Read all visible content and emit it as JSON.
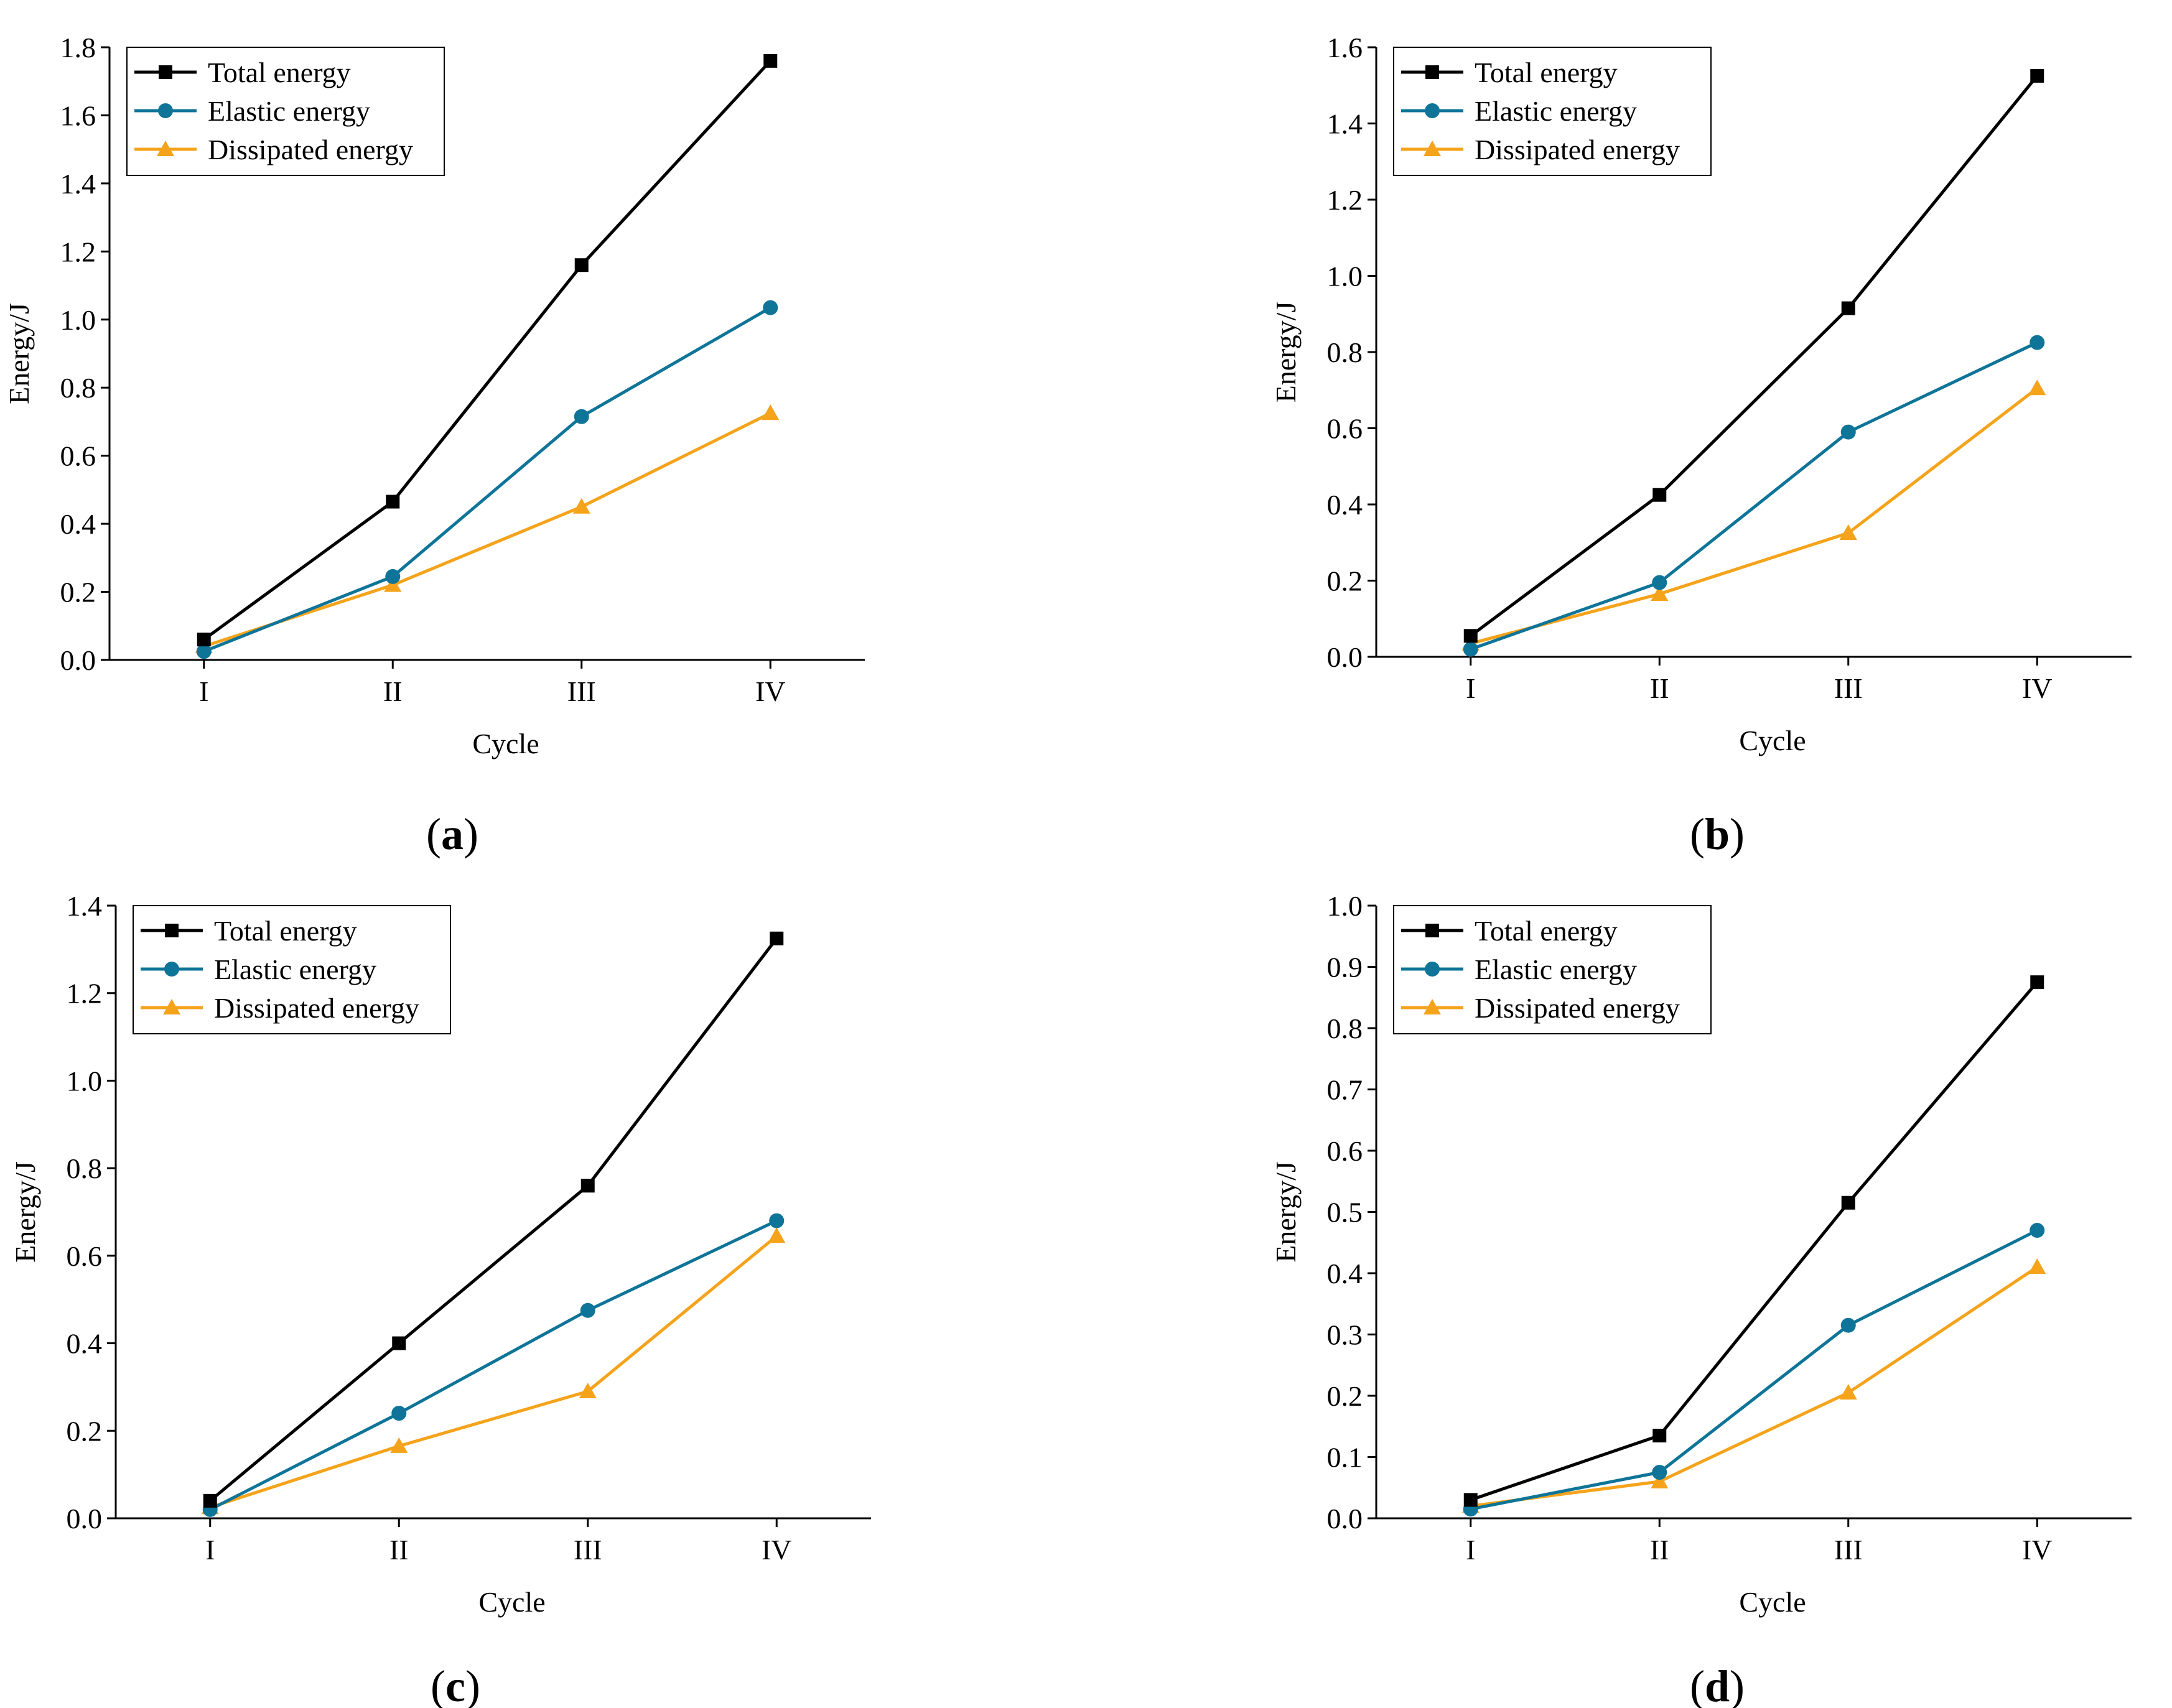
{
  "figure": {
    "series_styles": [
      {
        "name": "Total energy",
        "color": "#000000",
        "marker": "square"
      },
      {
        "name": "Elastic energy",
        "color": "#0e7498",
        "marker": "circle"
      },
      {
        "name": "Dissipated energy",
        "color": "#f5a31a",
        "marker": "triangle"
      }
    ]
  },
  "chart_data": [
    {
      "type": "line",
      "panel_label": "a",
      "title": "",
      "xlabel": "Cycle",
      "ylabel": "Energy/J",
      "categories": [
        "I",
        "II",
        "III",
        "IV"
      ],
      "ylim": [
        0,
        1.8
      ],
      "yticks": [
        "0.0",
        "0.2",
        "0.4",
        "0.6",
        "0.8",
        "1.0",
        "1.2",
        "1.4",
        "1.6",
        "1.8"
      ],
      "legend_position": "top-left",
      "series": [
        {
          "name": "Total energy",
          "values": [
            0.06,
            0.465,
            1.16,
            1.76
          ]
        },
        {
          "name": "Elastic energy",
          "values": [
            0.025,
            0.245,
            0.715,
            1.035
          ]
        },
        {
          "name": "Dissipated energy",
          "values": [
            0.04,
            0.22,
            0.45,
            0.725
          ]
        }
      ]
    },
    {
      "type": "line",
      "panel_label": "b",
      "title": "",
      "xlabel": "Cycle",
      "ylabel": "Energy/J",
      "categories": [
        "I",
        "II",
        "III",
        "IV"
      ],
      "ylim": [
        0,
        1.6
      ],
      "yticks": [
        "0.0",
        "0.2",
        "0.4",
        "0.6",
        "0.8",
        "1.0",
        "1.2",
        "1.4",
        "1.6"
      ],
      "legend_position": "top-left",
      "series": [
        {
          "name": "Total energy",
          "values": [
            0.055,
            0.425,
            0.915,
            1.525
          ]
        },
        {
          "name": "Elastic energy",
          "values": [
            0.02,
            0.195,
            0.59,
            0.825
          ]
        },
        {
          "name": "Dissipated energy",
          "values": [
            0.035,
            0.165,
            0.325,
            0.705
          ]
        }
      ]
    },
    {
      "type": "line",
      "panel_label": "c",
      "title": "",
      "xlabel": "Cycle",
      "ylabel": "Energy/J",
      "categories": [
        "I",
        "II",
        "III",
        "IV"
      ],
      "ylim": [
        0,
        1.4
      ],
      "yticks": [
        "0.0",
        "0.2",
        "0.4",
        "0.6",
        "0.8",
        "1.0",
        "1.2",
        "1.4"
      ],
      "legend_position": "top-left",
      "series": [
        {
          "name": "Total energy",
          "values": [
            0.04,
            0.4,
            0.76,
            1.325
          ]
        },
        {
          "name": "Elastic energy",
          "values": [
            0.02,
            0.24,
            0.475,
            0.68
          ]
        },
        {
          "name": "Dissipated energy",
          "values": [
            0.025,
            0.165,
            0.29,
            0.645
          ]
        }
      ]
    },
    {
      "type": "line",
      "panel_label": "d",
      "title": "",
      "xlabel": "Cycle",
      "ylabel": "Energy/J",
      "categories": [
        "I",
        "II",
        "III",
        "IV"
      ],
      "ylim": [
        0,
        1.0
      ],
      "yticks": [
        "0.0",
        "0.1",
        "0.2",
        "0.3",
        "0.4",
        "0.5",
        "0.6",
        "0.7",
        "0.8",
        "0.9",
        "1.0"
      ],
      "legend_position": "top-left",
      "series": [
        {
          "name": "Total energy",
          "values": [
            0.03,
            0.135,
            0.515,
            0.875
          ]
        },
        {
          "name": "Elastic energy",
          "values": [
            0.015,
            0.075,
            0.315,
            0.47
          ]
        },
        {
          "name": "Dissipated energy",
          "values": [
            0.02,
            0.06,
            0.205,
            0.41
          ]
        }
      ]
    }
  ]
}
